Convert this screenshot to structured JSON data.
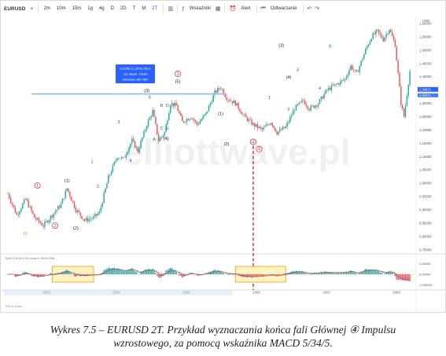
{
  "toolbar": {
    "symbol": "EURUSD",
    "add": "+",
    "timeframes": [
      "2m",
      "10m",
      "15m",
      "1g",
      "4g",
      "D",
      "2D",
      "T",
      "M",
      "2T"
    ],
    "selected_timeframe": "2T",
    "indicators": "Wskaźniki",
    "alert": "Alert",
    "replay": "Odtwarzanie",
    "currency": "USD"
  },
  "watermark": "elliottwave.pl",
  "tooltip": [
    "0,01561 (1,15%) 156,1",
    "101 słupki, 1519d",
    "Wolumen 967,45K"
  ],
  "macd_label": "MACD 5/34 5,34 close 5 SMA SMA",
  "lower_label": "RSI & close",
  "marker_circle4": "4",
  "price_badges": [
    "1,34971",
    "1,34871"
  ],
  "chart_data": {
    "type": "candlestick",
    "x_labels": [
      "2003",
      "2004",
      "2005",
      "2006",
      "2007",
      "2008"
    ],
    "y_ticks": [
      "1,60000",
      "1,55000",
      "1,50000",
      "1,45000",
      "1,40000",
      "1,35000",
      "1,30000",
      "1,25000",
      "1,20000",
      "1,15000",
      "1,10000",
      "1,05000",
      "1,00000",
      "0,95000",
      "0,90000",
      "0,85000",
      "0,80000",
      "0,75000"
    ],
    "macd_ticks": [
      "0,05000",
      "0,00000",
      "-0,05000"
    ],
    "wave_labels": [
      {
        "text": "IV",
        "color": "#b8a800"
      },
      {
        "text": "(1)",
        "color": "#222222"
      },
      {
        "text": "(2)",
        "color": "#222222"
      },
      {
        "text": "(3)",
        "color": "#222222"
      },
      {
        "text": "(4)",
        "color": "#222222"
      },
      {
        "text": "(5)",
        "color": "#222222"
      },
      {
        "text": "(1)",
        "color": "#222222"
      },
      {
        "text": "(2)",
        "color": "#222222"
      },
      {
        "text": "(3)",
        "color": "#222222"
      },
      {
        "text": "(4)",
        "color": "#222222"
      },
      {
        "text": "(5)",
        "color": "#222222"
      },
      {
        "text": "1",
        "color": "#d32f2f"
      },
      {
        "text": "2",
        "color": "#d32f2f"
      },
      {
        "text": "3",
        "color": "#d32f2f"
      },
      {
        "text": "4",
        "color": "#d32f2f"
      },
      {
        "text": "5",
        "color": "#d32f2f"
      },
      {
        "text": "1",
        "color": "#1e5fc7"
      },
      {
        "text": "2",
        "color": "#1e5fc7"
      },
      {
        "text": "3",
        "color": "#1e5fc7"
      },
      {
        "text": "4",
        "color": "#1e5fc7"
      },
      {
        "text": "5",
        "color": "#1e5fc7"
      },
      {
        "text": "1",
        "color": "#1e5fc7"
      },
      {
        "text": "2",
        "color": "#1e5fc7"
      },
      {
        "text": "3",
        "color": "#1e5fc7"
      },
      {
        "text": "4",
        "color": "#1e5fc7"
      },
      {
        "text": "5",
        "color": "#1e5fc7"
      },
      {
        "text": "A",
        "color": "#1e5fc7"
      },
      {
        "text": "B",
        "color": "#1e5fc7"
      },
      {
        "text": "C",
        "color": "#1e5fc7"
      },
      {
        "text": "D",
        "color": "#1e5fc7"
      },
      {
        "text": "E",
        "color": "#1e5fc7"
      },
      {
        "text": "V",
        "color": "#b8a800"
      }
    ],
    "colors": {
      "up": "#26a69a",
      "down": "#ef5350",
      "highlight": "#f5a623",
      "line": "#2962ff"
    }
  },
  "caption": {
    "line1": "Wykres 7.5 – EURUSD 2T. Przykład wyznaczania końca fali Głównej ④ Impulsu",
    "line2": "wzrostowego, za pomocą wskaźnika MACD 5/34/5."
  }
}
